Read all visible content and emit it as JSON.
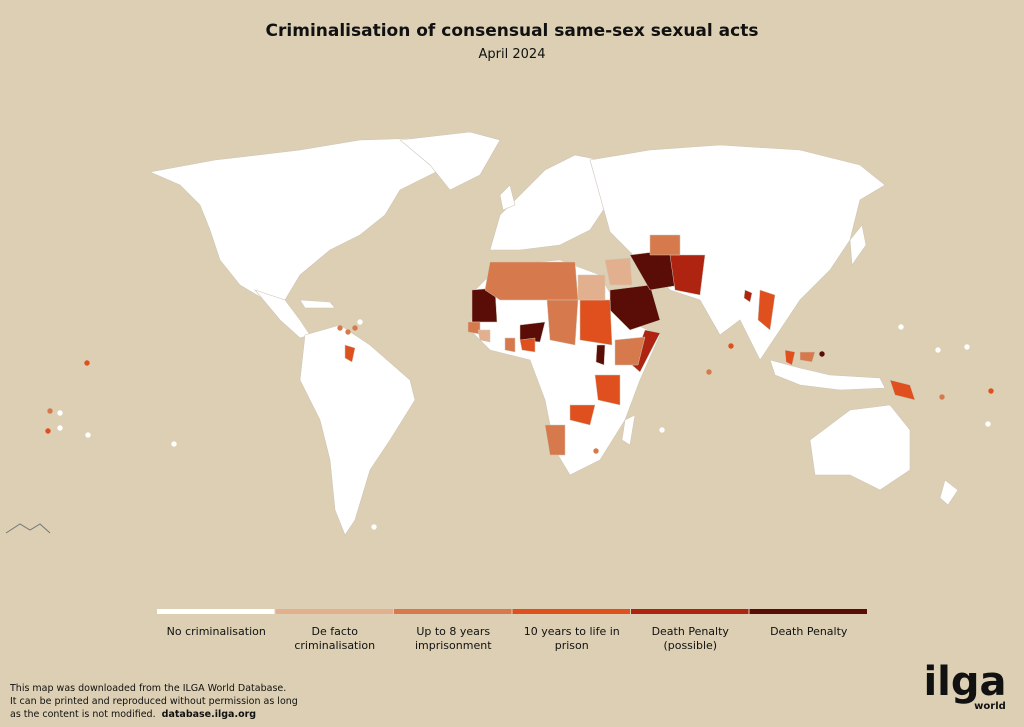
{
  "header": {
    "title": "Criminalisation of consensual same-sex sexual acts",
    "subtitle": "April 2024"
  },
  "legend": [
    {
      "label": [
        "No criminalisation"
      ],
      "color": "#ffffff"
    },
    {
      "label": [
        "De facto",
        "criminalisation"
      ],
      "color": "#e3b08f"
    },
    {
      "label": [
        "Up to 8 years",
        "imprisonment"
      ],
      "color": "#d67a4e"
    },
    {
      "label": [
        "10 years to life in",
        "prison"
      ],
      "color": "#e0501e"
    },
    {
      "label": [
        "Death Penalty",
        "(possible)"
      ],
      "color": "#ae2411"
    },
    {
      "label": [
        "Death Penalty"
      ],
      "color": "#5a0d06"
    }
  ],
  "footer": {
    "lines": [
      "This map was downloaded from the ILGA World Database.",
      "It can be printed and reproduced without permission as long",
      "as the content is not modified."
    ],
    "link": "database.ilga.org"
  },
  "logo": {
    "name": "ilga",
    "sub": "world"
  }
}
